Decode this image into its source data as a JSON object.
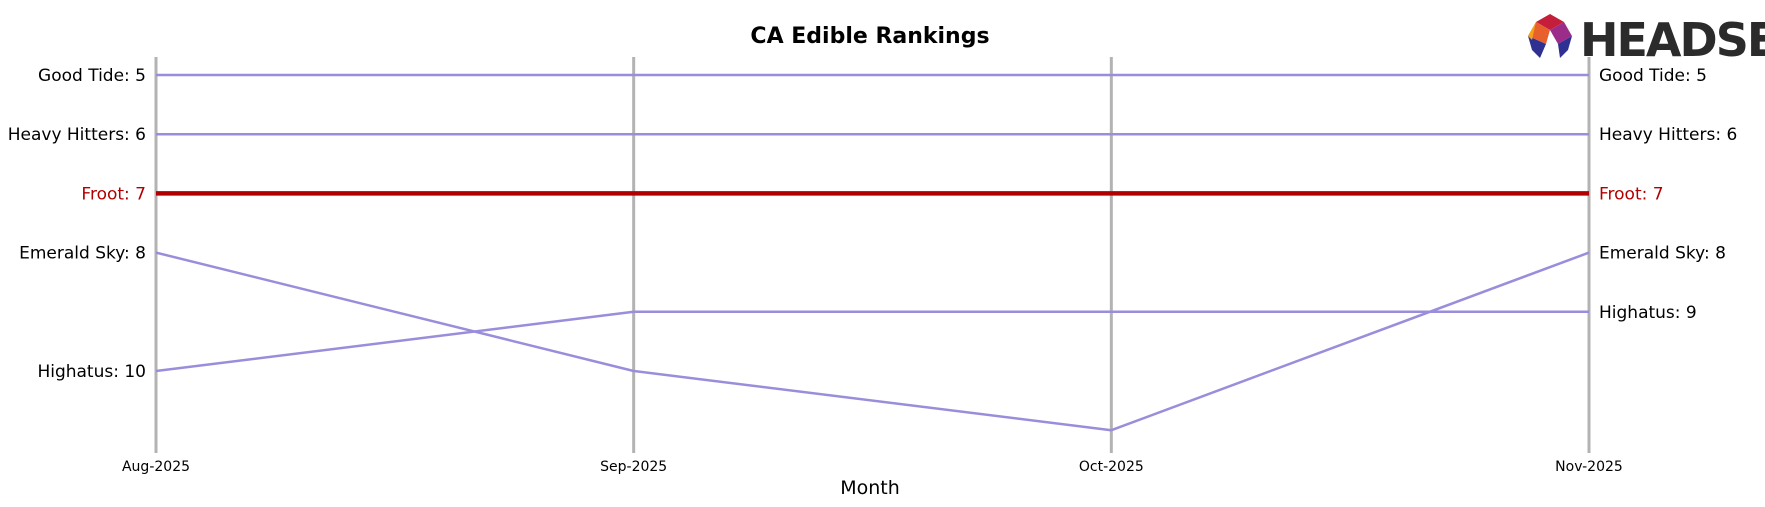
{
  "logo": {
    "text": "HEADSET",
    "colors": [
      "#c41e3a",
      "#e8602c",
      "#9b2c8a",
      "#2e3192",
      "#f7a21b"
    ]
  },
  "chart_data": {
    "type": "line",
    "title": "CA Edible Rankings",
    "xlabel": "Month",
    "ylabel": "",
    "categories": [
      "Aug-2025",
      "Sep-2025",
      "Oct-2025",
      "Nov-2025"
    ],
    "y_scale": "rank",
    "ylim": [
      4.7,
      11.3
    ],
    "y_inverted": true,
    "grid": "vertical",
    "highlight_color": "#b00000",
    "series_color": "#9a8ddb",
    "gridline_color": "#b3b3b3",
    "series": [
      {
        "name": "Good Tide",
        "values": [
          5,
          5,
          5,
          5
        ],
        "start_label": "Good Tide: 5",
        "end_label": "Good Tide: 5",
        "highlight": false
      },
      {
        "name": "Heavy Hitters",
        "values": [
          6,
          6,
          6,
          6
        ],
        "start_label": "Heavy Hitters: 6",
        "end_label": "Heavy Hitters: 6",
        "highlight": false
      },
      {
        "name": "Froot",
        "values": [
          7,
          7,
          7,
          7
        ],
        "start_label": "Froot: 7",
        "end_label": "Froot: 7",
        "highlight": true
      },
      {
        "name": "Emerald Sky",
        "values": [
          8,
          10,
          11,
          8
        ],
        "start_label": "Emerald Sky: 8",
        "end_label": "Emerald Sky: 8",
        "highlight": false
      },
      {
        "name": "Highatus",
        "values": [
          10,
          9,
          9,
          9
        ],
        "start_label": "Highatus: 10",
        "end_label": "Highatus: 9",
        "highlight": false
      }
    ]
  }
}
